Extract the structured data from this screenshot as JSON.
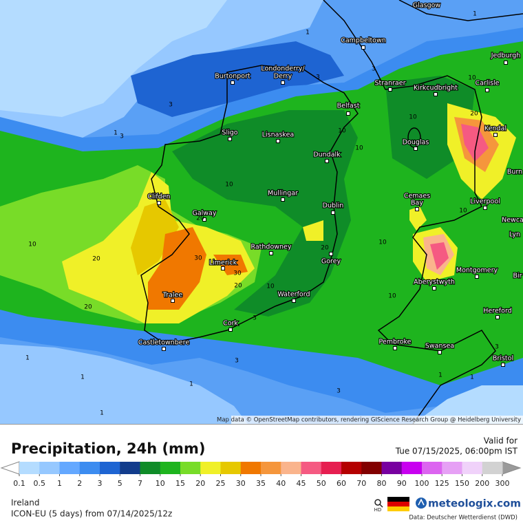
{
  "map": {
    "attribution": "Map data © OpenStreetMap contributors, rendering GIScience Research Group @ Heidelberg University",
    "cities": [
      "Glasgow",
      "Campbeltown",
      "Jedburgh",
      "Burtonport",
      "Londonderry/",
      "Derry",
      "Stranraer",
      "Kirkcudbright",
      "Carlisle",
      "Belfast",
      "Sligo",
      "Lisnaskea",
      "Douglas",
      "Kendal",
      "Dundalk",
      "Burn",
      "Clifden",
      "Mullingar",
      "Cemaes",
      "Bay",
      "Liverpool",
      "Galway",
      "Dublin",
      "Newca",
      "Lyn",
      "Rathdowney",
      "Limerick",
      "Gorey",
      "Montgomery",
      "Aberystwyth",
      "Bir",
      "Tralee",
      "Waterford",
      "Hereford",
      "Cork",
      "Castletownbere",
      "Pembroke",
      "Swansea",
      "Bristol"
    ],
    "contour_labels": [
      1,
      3,
      3,
      3,
      1,
      3,
      10,
      10,
      10,
      10,
      10,
      1,
      10,
      20,
      20,
      20,
      30,
      30,
      20,
      10,
      20,
      10,
      10,
      20,
      3,
      3,
      1,
      1,
      1,
      1,
      3,
      1,
      3,
      1,
      10
    ]
  },
  "header": {
    "title": "Precipitation, 24h (mm)",
    "valid_label": "Valid for",
    "valid_time": "Tue 07/15/2025, 06:00pm IST"
  },
  "legend": {
    "ticks": [
      0.1,
      0.5,
      1,
      2,
      3,
      5,
      7,
      10,
      15,
      20,
      25,
      30,
      35,
      40,
      45,
      50,
      60,
      70,
      80,
      90,
      100,
      125,
      150,
      200,
      300
    ],
    "colors": [
      "#b4dcff",
      "#96c8ff",
      "#64a8ff",
      "#3c8cf0",
      "#1e64d2",
      "#123c8c",
      "#0f8c28",
      "#1eb41e",
      "#78dc28",
      "#f0f028",
      "#e6c800",
      "#f07800",
      "#f5963c",
      "#fab48c",
      "#f55a82",
      "#e61e50",
      "#b40000",
      "#820000",
      "#7800a0",
      "#c800f0",
      "#dc64f0",
      "#e6a0f5",
      "#f0d2fa",
      "#d2d2d2"
    ],
    "under_color": "#ffffff",
    "over_color": "#9a9a9a"
  },
  "footer": {
    "region": "Ireland",
    "model": "ICON-EU (5 days) from 07/14/2025/12z",
    "hd": "HD",
    "brand": "meteologix.com",
    "source": "Data: Deutscher Wetterdienst (DWD)"
  }
}
